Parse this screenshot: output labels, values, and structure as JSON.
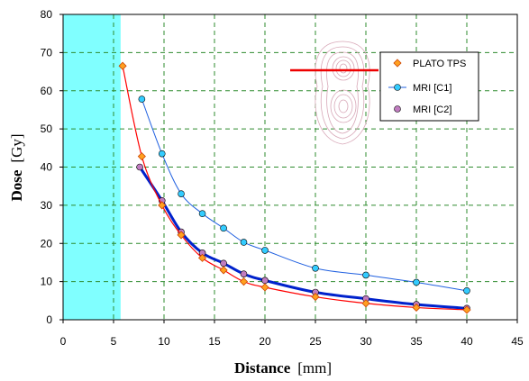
{
  "chart_data": {
    "type": "line",
    "x_axis": {
      "title": "Distance",
      "unit": "[mm]",
      "min": 0,
      "max": 45,
      "ticks": [
        0,
        5,
        10,
        15,
        20,
        25,
        30,
        35,
        40,
        45
      ]
    },
    "y_axis": {
      "title": "Dose",
      "unit": "[Gy]",
      "min": 0,
      "max": 80,
      "ticks": [
        0,
        10,
        20,
        30,
        40,
        50,
        60,
        70,
        80
      ]
    },
    "grid": "dashed",
    "grid_color": "#2e8b2e",
    "shaded_region": {
      "x_start": 0,
      "x_end": 5.7,
      "color": "#80ffff"
    },
    "legend_placement": "top-right",
    "series": [
      {
        "name": "PLATO TPS",
        "marker": "diamond",
        "marker_color": "#ffa020",
        "line_color": "#ff0000",
        "points": [
          [
            5.9,
            66.5
          ],
          [
            7.8,
            42.8
          ],
          [
            9.8,
            30.0
          ],
          [
            11.7,
            22.2
          ],
          [
            13.8,
            16.2
          ],
          [
            15.9,
            13.0
          ],
          [
            17.9,
            10.0
          ],
          [
            20.0,
            8.5
          ],
          [
            25.0,
            6.0
          ],
          [
            30.0,
            4.3
          ],
          [
            35.0,
            3.2
          ],
          [
            40.0,
            2.6
          ]
        ]
      },
      {
        "name": "MRI [C1]",
        "marker": "circle",
        "marker_color": "#33ccff",
        "line_color": "#2060e0",
        "points": [
          [
            7.8,
            57.8
          ],
          [
            9.8,
            43.5
          ],
          [
            11.7,
            33.0
          ],
          [
            13.8,
            27.8
          ],
          [
            15.9,
            24.0
          ],
          [
            17.9,
            20.3
          ],
          [
            20.0,
            18.2
          ],
          [
            25.0,
            13.5
          ],
          [
            30.0,
            11.7
          ],
          [
            35.0,
            9.8
          ],
          [
            40.0,
            7.6
          ]
        ]
      },
      {
        "name": "MRI [C2]",
        "marker": "circle",
        "marker_color": "#c07cc0",
        "line_color": "#0022cc",
        "points": [
          [
            7.6,
            40.0
          ],
          [
            9.8,
            31.2
          ],
          [
            11.7,
            23.0
          ],
          [
            13.8,
            17.5
          ],
          [
            15.9,
            14.8
          ],
          [
            17.9,
            12.0
          ],
          [
            20.0,
            10.3
          ],
          [
            25.0,
            7.2
          ],
          [
            30.0,
            5.5
          ],
          [
            35.0,
            4.0
          ],
          [
            40.0,
            3.0
          ]
        ]
      }
    ]
  },
  "inset": {
    "type": "isodose-contour-image",
    "line_color": "#ee0000"
  }
}
